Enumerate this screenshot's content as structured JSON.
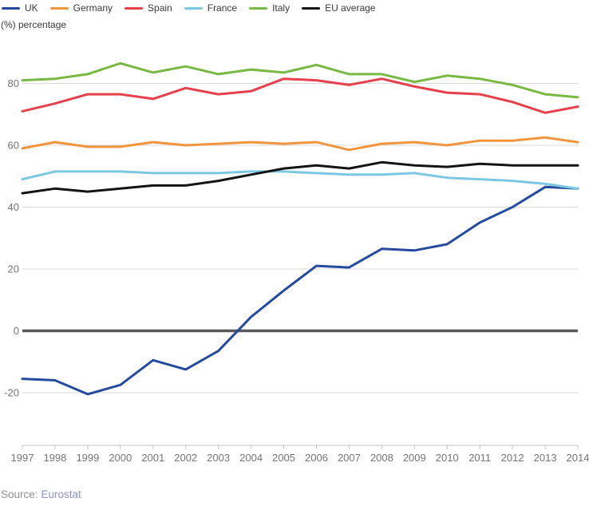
{
  "subtitle": "(%) percentage",
  "source": {
    "label": "Source:",
    "link": "Eurostat"
  },
  "colors": {
    "gridline": "#d8d8d8",
    "zero_line": "#595959",
    "axis": "#c6c6c6",
    "tick_text": "#757575",
    "legend_text": "#3a3a3a",
    "source_text": "#909090",
    "source_link": "#8d92cc",
    "uk": "#264b9e",
    "germany": "#f0943e",
    "spain": "#e5404b",
    "france": "#7cc7e2",
    "italy": "#77b943",
    "eu_average": "#141414"
  },
  "chart_data": {
    "type": "line",
    "title": "",
    "subtitle": "(%) percentage",
    "xlabel": "",
    "ylabel": "(%) percentage",
    "categories": [
      "1997",
      "1998",
      "1999",
      "2000",
      "2001",
      "2002",
      "2003",
      "2004",
      "2005",
      "2006",
      "2007",
      "2008",
      "2009",
      "2010",
      "2011",
      "2012",
      "2013",
      "2014"
    ],
    "series": [
      {
        "name": "UK",
        "color": "#264b9e",
        "values": [
          -15.5,
          -16,
          -20.5,
          -17.5,
          -9.5,
          -12.5,
          -6.5,
          4.5,
          13,
          21,
          20.5,
          26.5,
          26,
          28,
          35,
          40,
          46.5,
          46
        ]
      },
      {
        "name": "Germany",
        "color": "#f0943e",
        "values": [
          59,
          61,
          59.5,
          59.5,
          61,
          60,
          60.5,
          61,
          60.5,
          61,
          58.5,
          60.5,
          61,
          60,
          61.5,
          61.5,
          62.5,
          61
        ]
      },
      {
        "name": "Spain",
        "color": "#e5404b",
        "values": [
          71,
          73.5,
          76.5,
          76.5,
          75,
          78.5,
          76.5,
          77.5,
          81.5,
          81,
          79.5,
          81.5,
          79,
          77,
          76.5,
          74,
          70.5,
          72.5
        ]
      },
      {
        "name": "France",
        "color": "#7cc7e2",
        "values": [
          49,
          51.5,
          51.5,
          51.5,
          51,
          51,
          51,
          51.5,
          51.5,
          51,
          50.5,
          50.5,
          51,
          49.5,
          49,
          48.5,
          47.5,
          46
        ]
      },
      {
        "name": "Italy",
        "color": "#77b943",
        "values": [
          81,
          81.5,
          83,
          86.5,
          83.5,
          85.5,
          83,
          84.5,
          83.5,
          86,
          83,
          83,
          80.5,
          82.5,
          81.5,
          79.5,
          76.5,
          75.5
        ]
      },
      {
        "name": "EU average",
        "color": "#141414",
        "values": [
          44.5,
          46,
          45,
          46,
          47,
          47,
          48.5,
          50.5,
          52.5,
          53.5,
          52.5,
          54.5,
          53.5,
          53,
          54,
          53.5,
          53.5,
          53.5
        ]
      }
    ],
    "yticks": [
      -20,
      0,
      20,
      40,
      60,
      80
    ],
    "ylim": [
      -25,
      90
    ],
    "grid": true,
    "zero_line": true,
    "legend_position": "top",
    "source": "Source: Eurostat"
  }
}
